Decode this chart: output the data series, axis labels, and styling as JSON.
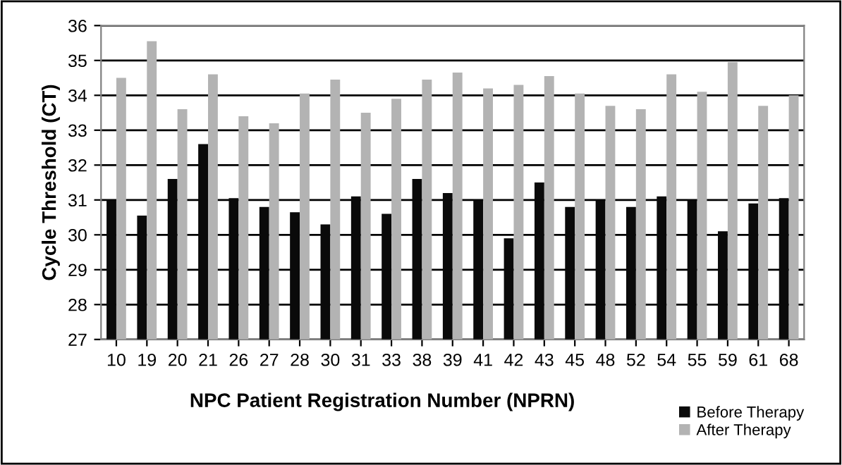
{
  "chart_data": {
    "type": "bar",
    "xlabel": "NPC Patient Registration Number (NPRN)",
    "ylabel": "Cycle Threshold (CT)",
    "categories": [
      "10",
      "19",
      "20",
      "21",
      "26",
      "27",
      "28",
      "30",
      "31",
      "33",
      "38",
      "39",
      "41",
      "42",
      "43",
      "45",
      "48",
      "52",
      "54",
      "55",
      "59",
      "61",
      "68"
    ],
    "series": [
      {
        "name": "Before Therapy",
        "color": "#0a0a0a",
        "values": [
          31.0,
          30.55,
          31.6,
          32.6,
          31.05,
          30.8,
          30.65,
          30.3,
          31.1,
          30.6,
          31.6,
          31.2,
          31.0,
          29.9,
          31.5,
          30.8,
          31.0,
          30.8,
          31.1,
          31.0,
          30.1,
          30.9,
          31.05
        ]
      },
      {
        "name": "After Therapy",
        "color": "#b3b3b3",
        "values": [
          34.5,
          35.55,
          33.6,
          34.6,
          33.4,
          33.2,
          34.05,
          34.45,
          33.5,
          33.9,
          34.45,
          34.65,
          34.2,
          34.3,
          34.55,
          34.05,
          33.7,
          33.6,
          34.6,
          34.1,
          34.95,
          33.7,
          34.0
        ]
      }
    ],
    "ylim": [
      27,
      36
    ],
    "yticks": [
      27,
      28,
      29,
      30,
      31,
      32,
      33,
      34,
      35,
      36
    ],
    "grid": "y",
    "legend": "bottom right"
  }
}
